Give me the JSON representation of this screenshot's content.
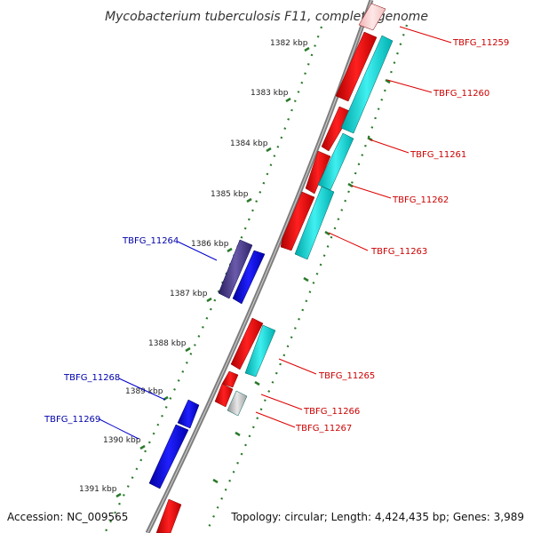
{
  "title": "Mycobacterium tuberculosis F11, complete genome",
  "accession": "Accession: NC_009565",
  "topology": "Topology: circular; Length: 4,424,435 bp; Genes: 3,989",
  "kbp_ticks": [
    "1382 kbp",
    "1383 kbp",
    "1384 kbp",
    "1385 kbp",
    "1386 kbp",
    "1387 kbp",
    "1388 kbp",
    "1389 kbp",
    "1390 kbp",
    "1391 kbp"
  ],
  "genes_right": [
    "TBFG_11259",
    "TBFG_11260",
    "TBFG_11261",
    "TBFG_11262",
    "TBFG_11263",
    "TBFG_11265",
    "TBFG_11266",
    "TBFG_11267"
  ],
  "genes_left": [
    "TBFG_11264",
    "TBFG_11268",
    "TBFG_11269"
  ],
  "colors": {
    "forward_cds": "#ff0000",
    "forward_gene": "#00dddd",
    "reverse_cds": "#0000ee",
    "reverse_gene": "#4a3a8a",
    "right_label": "#cc0000",
    "left_label": "#0000aa",
    "tick": "#2a7a2a",
    "backbone": "#808080"
  }
}
